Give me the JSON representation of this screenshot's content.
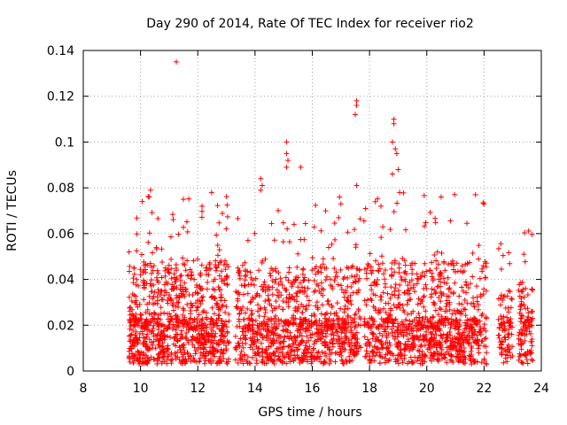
{
  "chart_data": {
    "type": "scatter",
    "title": "Day 290 of 2014, Rate Of TEC Index for receiver rio2",
    "xlabel": "GPS time / hours",
    "ylabel": "ROTI / TECUs",
    "xlim": [
      8,
      24
    ],
    "ylim": [
      0,
      0.14
    ],
    "xticks": [
      "8",
      "10",
      "12",
      "14",
      "16",
      "18",
      "20",
      "22",
      "24"
    ],
    "yticks": [
      "0",
      "0.02",
      "0.04",
      "0.06",
      "0.08",
      "0.1",
      "0.12",
      "0.14"
    ],
    "grid": true,
    "marker": "plus",
    "color": "#ff0000",
    "clusters": [
      {
        "t0": 9.6,
        "t1": 13.1,
        "lo": 0.003,
        "peak": 0.055,
        "n": 900
      },
      {
        "t0": 13.3,
        "t1": 17.7,
        "lo": 0.003,
        "peak": 0.05,
        "n": 950
      },
      {
        "t0": 17.8,
        "t1": 22.1,
        "lo": 0.003,
        "peak": 0.055,
        "n": 950
      },
      {
        "t0": 22.5,
        "t1": 23.0,
        "lo": 0.003,
        "peak": 0.034,
        "n": 90
      },
      {
        "t0": 23.2,
        "t1": 23.7,
        "lo": 0.003,
        "peak": 0.04,
        "n": 110
      }
    ],
    "highlights": [
      {
        "x": 11.25,
        "y": 0.135
      },
      {
        "x": 17.55,
        "y": 0.118
      },
      {
        "x": 17.55,
        "y": 0.116
      },
      {
        "x": 17.5,
        "y": 0.112
      },
      {
        "x": 18.85,
        "y": 0.11
      },
      {
        "x": 18.85,
        "y": 0.108
      },
      {
        "x": 18.8,
        "y": 0.1
      },
      {
        "x": 18.9,
        "y": 0.097
      },
      {
        "x": 18.95,
        "y": 0.095
      },
      {
        "x": 18.8,
        "y": 0.086
      },
      {
        "x": 19.0,
        "y": 0.088
      },
      {
        "x": 15.1,
        "y": 0.1
      },
      {
        "x": 15.1,
        "y": 0.095
      },
      {
        "x": 15.15,
        "y": 0.092
      },
      {
        "x": 15.1,
        "y": 0.089
      },
      {
        "x": 15.6,
        "y": 0.089
      },
      {
        "x": 14.2,
        "y": 0.084
      },
      {
        "x": 14.25,
        "y": 0.081
      },
      {
        "x": 14.2,
        "y": 0.079
      },
      {
        "x": 17.55,
        "y": 0.081
      },
      {
        "x": 10.35,
        "y": 0.079
      },
      {
        "x": 10.3,
        "y": 0.076
      },
      {
        "x": 11.5,
        "y": 0.075
      },
      {
        "x": 16.95,
        "y": 0.076
      },
      {
        "x": 17.0,
        "y": 0.073
      },
      {
        "x": 21.7,
        "y": 0.077
      },
      {
        "x": 20.5,
        "y": 0.076
      },
      {
        "x": 22.0,
        "y": 0.073
      },
      {
        "x": 19.05,
        "y": 0.078
      },
      {
        "x": 18.4,
        "y": 0.072
      },
      {
        "x": 12.15,
        "y": 0.072
      },
      {
        "x": 9.6,
        "y": 0.052
      }
    ]
  }
}
